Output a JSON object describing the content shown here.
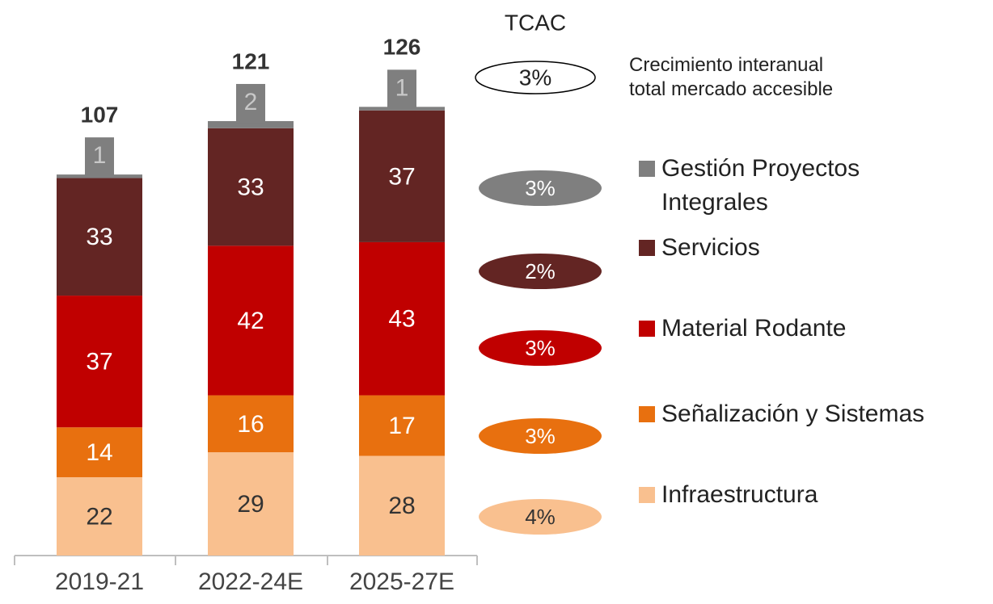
{
  "chart_data": {
    "type": "stacked_bar",
    "categories": [
      "2019-21",
      "2022-24E",
      "2025-27E"
    ],
    "series": [
      {
        "name": "Gestión Proyectos Integrales",
        "color": "#7f7f7f",
        "values": [
          1,
          2,
          1
        ],
        "cagr": 3,
        "cagr_label": "3%"
      },
      {
        "name": "Servicios",
        "color": "#632523",
        "values": [
          33,
          33,
          37
        ],
        "cagr": 2,
        "cagr_label": "2%"
      },
      {
        "name": "Material Rodante",
        "color": "#c00000",
        "values": [
          37,
          42,
          43
        ],
        "cagr": 3,
        "cagr_label": "3%"
      },
      {
        "name": "Señalización y Sistemas",
        "color": "#e8700f",
        "values": [
          14,
          16,
          17
        ],
        "cagr": 3,
        "cagr_label": "3%"
      },
      {
        "name": "Infraestructura",
        "color": "#f9c08f",
        "values": [
          22,
          29,
          28
        ],
        "cagr": 4,
        "cagr_label": "4%"
      }
    ],
    "totals": [
      107,
      121,
      126
    ],
    "cagr_title": "TCAC",
    "total_cagr": 3,
    "total_cagr_label": "3%",
    "total_cagr_note": [
      "Crecimiento interanual",
      "total mercado accesible"
    ]
  }
}
